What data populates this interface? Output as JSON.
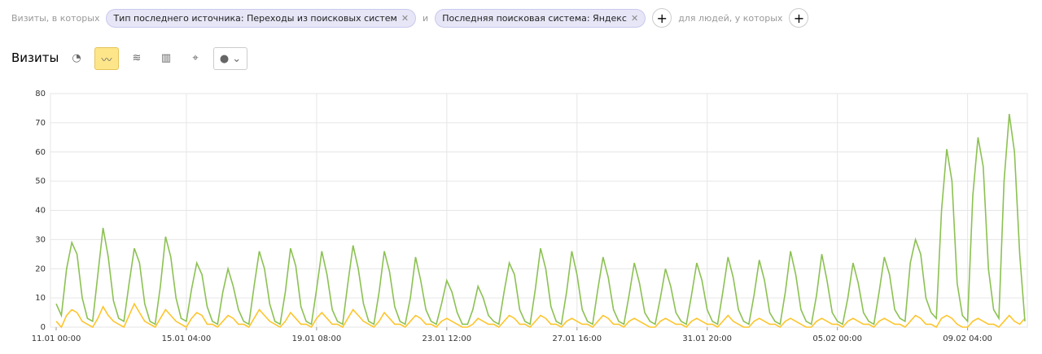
{
  "filters": {
    "prefix": "Визиты, в которых",
    "chips": [
      "Тип последнего источника: Переходы из поисковых систем",
      "Последняя поисковая система: Яндекс"
    ],
    "joiner": "и",
    "people": "для людей, у которых"
  },
  "report": {
    "title": "Визиты"
  },
  "chart_data": {
    "type": "line",
    "categories": [
      "11.01 00:00",
      null,
      null,
      null,
      null,
      null,
      null,
      null,
      null,
      null,
      null,
      null,
      null,
      null,
      null,
      null,
      null,
      null,
      null,
      null,
      null,
      null,
      null,
      null,
      null,
      "15.01 04:00",
      null,
      null,
      null,
      null,
      null,
      null,
      null,
      null,
      null,
      null,
      null,
      null,
      null,
      null,
      null,
      null,
      null,
      null,
      null,
      null,
      null,
      null,
      null,
      null,
      "19.01 08:00",
      null,
      null,
      null,
      null,
      null,
      null,
      null,
      null,
      null,
      null,
      null,
      null,
      null,
      null,
      null,
      null,
      null,
      null,
      null,
      null,
      null,
      null,
      null,
      null,
      "23.01 12:00",
      null,
      null,
      null,
      null,
      null,
      null,
      null,
      null,
      null,
      null,
      null,
      null,
      null,
      null,
      null,
      null,
      null,
      null,
      null,
      null,
      null,
      null,
      null,
      null,
      "27.01 16:00",
      null,
      null,
      null,
      null,
      null,
      null,
      null,
      null,
      null,
      null,
      null,
      null,
      null,
      null,
      null,
      null,
      null,
      null,
      null,
      null,
      null,
      null,
      null,
      null,
      "31.01 20:00",
      null,
      null,
      null,
      null,
      null,
      null,
      null,
      null,
      null,
      null,
      null,
      null,
      null,
      null,
      null,
      null,
      null,
      null,
      null,
      null,
      null,
      null,
      null,
      null,
      "05.02 00:00",
      null,
      null,
      null,
      null,
      null,
      null,
      null,
      null,
      null,
      null,
      null,
      null,
      null,
      null,
      null,
      null,
      null,
      null,
      null,
      null,
      null,
      null,
      null,
      null,
      "09.02 04:00",
      null,
      null,
      null,
      null,
      null,
      null,
      null,
      null,
      null,
      null,
      null
    ],
    "series": [
      {
        "color": "#8cc152",
        "values": [
          8,
          4,
          20,
          29,
          25,
          10,
          3,
          2,
          18,
          34,
          24,
          9,
          3,
          2,
          15,
          27,
          22,
          8,
          2,
          1,
          14,
          31,
          24,
          10,
          3,
          2,
          13,
          22,
          18,
          7,
          2,
          1,
          12,
          20,
          14,
          6,
          2,
          1,
          14,
          26,
          20,
          8,
          2,
          1,
          12,
          27,
          21,
          7,
          2,
          1,
          13,
          26,
          18,
          6,
          2,
          1,
          15,
          28,
          20,
          8,
          2,
          1,
          12,
          26,
          19,
          7,
          2,
          1,
          10,
          24,
          16,
          6,
          2,
          1,
          8,
          16,
          12,
          5,
          1,
          1,
          6,
          14,
          10,
          4,
          2,
          1,
          12,
          22,
          18,
          6,
          2,
          1,
          13,
          27,
          20,
          7,
          2,
          1,
          12,
          26,
          18,
          6,
          2,
          1,
          13,
          24,
          17,
          6,
          2,
          1,
          11,
          22,
          15,
          5,
          2,
          1,
          10,
          20,
          14,
          5,
          2,
          1,
          11,
          22,
          16,
          6,
          2,
          1,
          12,
          24,
          17,
          6,
          2,
          1,
          11,
          23,
          16,
          5,
          2,
          1,
          12,
          26,
          18,
          6,
          2,
          1,
          11,
          25,
          16,
          5,
          2,
          1,
          10,
          22,
          15,
          5,
          2,
          1,
          12,
          24,
          18,
          6,
          3,
          2,
          22,
          30,
          25,
          10,
          5,
          3,
          40,
          61,
          50,
          15,
          4,
          2,
          45,
          65,
          55,
          20,
          6,
          3,
          50,
          73,
          60,
          25,
          2
        ]
      },
      {
        "color": "#fdc52d",
        "values": [
          2,
          0,
          4,
          6,
          5,
          2,
          1,
          0,
          3,
          7,
          4,
          2,
          1,
          0,
          4,
          8,
          5,
          2,
          1,
          0,
          3,
          6,
          4,
          2,
          1,
          0,
          3,
          5,
          4,
          1,
          1,
          0,
          2,
          4,
          3,
          1,
          1,
          0,
          3,
          6,
          4,
          2,
          1,
          0,
          2,
          5,
          3,
          1,
          1,
          0,
          3,
          5,
          3,
          1,
          1,
          0,
          3,
          6,
          4,
          2,
          1,
          0,
          2,
          5,
          3,
          1,
          1,
          0,
          2,
          4,
          3,
          1,
          1,
          0,
          2,
          3,
          2,
          1,
          0,
          0,
          1,
          3,
          2,
          1,
          1,
          0,
          2,
          4,
          3,
          1,
          1,
          0,
          2,
          4,
          3,
          1,
          1,
          0,
          2,
          3,
          2,
          1,
          1,
          0,
          2,
          4,
          3,
          1,
          1,
          0,
          2,
          3,
          2,
          1,
          0,
          0,
          2,
          3,
          2,
          1,
          1,
          0,
          2,
          3,
          2,
          1,
          1,
          0,
          2,
          4,
          2,
          1,
          0,
          0,
          2,
          3,
          2,
          1,
          1,
          0,
          2,
          3,
          2,
          1,
          0,
          0,
          2,
          3,
          2,
          1,
          1,
          0,
          2,
          3,
          2,
          1,
          1,
          0,
          2,
          3,
          2,
          1,
          1,
          0,
          2,
          4,
          3,
          1,
          1,
          0,
          3,
          4,
          3,
          1,
          0,
          0,
          2,
          3,
          2,
          1,
          1,
          0,
          2,
          4,
          2,
          1,
          3
        ]
      }
    ],
    "ylim": [
      0,
      80
    ],
    "yticks": [
      0,
      10,
      20,
      30,
      40,
      50,
      60,
      70,
      80
    ],
    "grid": true
  }
}
